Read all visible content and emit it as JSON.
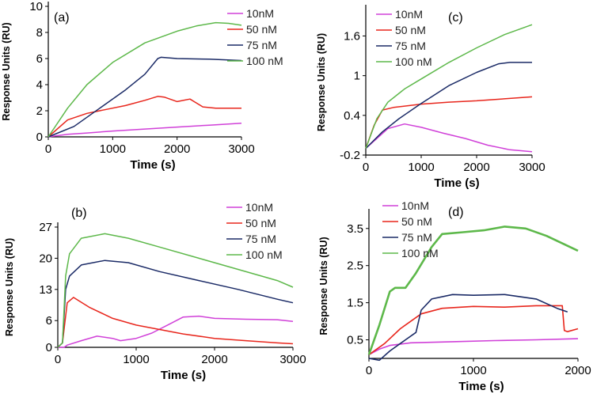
{
  "figure": {
    "colors": {
      "10nM": "#d040d8",
      "50nM": "#e8261c",
      "75nM": "#1a2a66",
      "100nM": "#5db84a"
    }
  },
  "chart_data": [
    {
      "id": "a",
      "panel_label": "(a)",
      "type": "line",
      "xlabel": "Time (s)",
      "ylabel": "Response Units (RU)",
      "xlim": [
        0,
        3000
      ],
      "ylim": [
        0,
        10
      ],
      "xticks": [
        0,
        1000,
        2000,
        3000
      ],
      "yticks": [
        0,
        2,
        4,
        6,
        8,
        10
      ],
      "series": [
        {
          "key": "10nM",
          "name": "10nM",
          "x": [
            0,
            300,
            600,
            1000,
            1500,
            2000,
            2500,
            3000
          ],
          "y": [
            0,
            0.2,
            0.3,
            0.45,
            0.6,
            0.75,
            0.9,
            1.05
          ]
        },
        {
          "key": "50nM",
          "name": "50 nM",
          "x": [
            0,
            300,
            600,
            900,
            1200,
            1500,
            1700,
            1800,
            2000,
            2200,
            2400,
            2600,
            3000
          ],
          "y": [
            0,
            1.3,
            1.8,
            2.1,
            2.4,
            2.8,
            3.1,
            3.05,
            2.7,
            2.9,
            2.3,
            2.2,
            2.2
          ]
        },
        {
          "key": "75nM",
          "name": "75 nM",
          "x": [
            0,
            400,
            800,
            1200,
            1500,
            1700,
            1750,
            2000,
            2500,
            3000
          ],
          "y": [
            0,
            0.8,
            2.2,
            3.6,
            4.8,
            6.0,
            6.1,
            6.0,
            5.95,
            5.85
          ]
        },
        {
          "key": "100nM",
          "name": "100 nM",
          "x": [
            0,
            300,
            600,
            1000,
            1500,
            2000,
            2300,
            2600,
            2800,
            3000
          ],
          "y": [
            0,
            2.2,
            4.0,
            5.7,
            7.2,
            8.1,
            8.5,
            8.75,
            8.7,
            8.55
          ]
        }
      ]
    },
    {
      "id": "b",
      "panel_label": "(b)",
      "type": "line",
      "xlabel": "Time (s)",
      "ylabel": "Response Units (RU)",
      "xlim": [
        0,
        3000
      ],
      "ylim": [
        0,
        27
      ],
      "xticks": [
        0,
        1000,
        2000,
        3000
      ],
      "yticks": [
        0,
        6,
        13,
        20,
        27
      ],
      "series": [
        {
          "key": "10nM",
          "name": "10nM",
          "x": [
            0,
            80,
            120,
            300,
            500,
            700,
            800,
            1000,
            1200,
            1400,
            1600,
            1800,
            2000,
            2400,
            2800,
            3000
          ],
          "y": [
            0,
            0,
            0.5,
            1.5,
            2.5,
            2.0,
            1.5,
            2.0,
            3.2,
            5.0,
            6.8,
            7.0,
            6.5,
            6.3,
            6.2,
            5.8
          ]
        },
        {
          "key": "50nM",
          "name": "50 nM",
          "x": [
            0,
            60,
            120,
            200,
            400,
            700,
            1000,
            1300,
            1600,
            2000,
            2400,
            2800,
            3000
          ],
          "y": [
            0,
            1,
            10.0,
            11.2,
            9.0,
            6.5,
            5.0,
            4.0,
            3.0,
            2.0,
            1.5,
            1.0,
            0.8
          ]
        },
        {
          "key": "75nM",
          "name": "75 nM",
          "x": [
            0,
            60,
            100,
            150,
            300,
            600,
            900,
            1300,
            1800,
            2300,
            2800,
            3000
          ],
          "y": [
            0,
            1,
            13.0,
            16.0,
            18.5,
            19.5,
            19.0,
            17.0,
            15.0,
            13.0,
            10.8,
            10.0
          ]
        },
        {
          "key": "100nM",
          "name": "100 nM",
          "x": [
            0,
            60,
            100,
            150,
            300,
            600,
            900,
            1300,
            1800,
            2300,
            2800,
            3000
          ],
          "y": [
            0,
            1,
            16.0,
            21.0,
            24.5,
            25.5,
            24.5,
            22.5,
            20.0,
            17.5,
            15.0,
            13.5
          ]
        }
      ]
    },
    {
      "id": "c",
      "panel_label": "(c)",
      "type": "line",
      "xlabel": "Time (s)",
      "ylabel": "Response Units (RU)",
      "xlim": [
        0,
        3000
      ],
      "ylim": [
        -0.2,
        2.0
      ],
      "xticks": [
        0,
        1000,
        2000,
        3000
      ],
      "yticks": [
        -0.2,
        0.4,
        1,
        1.6
      ],
      "series": [
        {
          "key": "10nM",
          "name": "10nM",
          "x": [
            0,
            200,
            400,
            700,
            1000,
            1400,
            1800,
            2200,
            2600,
            3000
          ],
          "y": [
            -0.1,
            0.05,
            0.2,
            0.27,
            0.22,
            0.13,
            0.05,
            -0.05,
            -0.12,
            -0.15
          ]
        },
        {
          "key": "50nM",
          "name": "50 nM",
          "x": [
            0,
            150,
            300,
            500,
            1000,
            1500,
            2000,
            2500,
            3000
          ],
          "y": [
            -0.1,
            0.25,
            0.48,
            0.52,
            0.57,
            0.6,
            0.62,
            0.65,
            0.68
          ]
        },
        {
          "key": "75nM",
          "name": "75 nM",
          "x": [
            0,
            300,
            600,
            1000,
            1500,
            2000,
            2400,
            2600,
            3000
          ],
          "y": [
            -0.1,
            0.15,
            0.35,
            0.58,
            0.85,
            1.05,
            1.18,
            1.2,
            1.2
          ]
        },
        {
          "key": "100nM",
          "name": "100 nM",
          "x": [
            0,
            200,
            400,
            700,
            1000,
            1500,
            2000,
            2500,
            3000
          ],
          "y": [
            -0.1,
            0.35,
            0.6,
            0.8,
            0.95,
            1.2,
            1.42,
            1.62,
            1.77
          ]
        }
      ]
    },
    {
      "id": "d",
      "panel_label": "(d)",
      "type": "line",
      "xlabel": "Time (s)",
      "ylabel": "Response Units (RU)",
      "xlim": [
        0,
        2000
      ],
      "ylim": [
        0,
        3.9
      ],
      "xticks": [
        0,
        1000,
        2000
      ],
      "yticks": [
        0.5,
        1.5,
        2.5,
        3.5
      ],
      "series": [
        {
          "key": "10nM",
          "name": "10nM",
          "x": [
            0,
            100,
            200,
            400,
            800,
            1200,
            1600,
            2000
          ],
          "y": [
            0.1,
            0.25,
            0.35,
            0.42,
            0.45,
            0.48,
            0.5,
            0.53
          ]
        },
        {
          "key": "50nM",
          "name": "50 nM",
          "x": [
            0,
            150,
            300,
            500,
            700,
            1000,
            1300,
            1600,
            1850,
            1870,
            1900,
            2000
          ],
          "y": [
            0.1,
            0.4,
            0.8,
            1.2,
            1.35,
            1.4,
            1.38,
            1.42,
            1.42,
            0.75,
            0.72,
            0.8
          ]
        },
        {
          "key": "75nM",
          "name": "75 nM",
          "x": [
            0,
            100,
            200,
            350,
            450,
            500,
            600,
            800,
            1000,
            1300,
            1600,
            1800,
            1900
          ],
          "y": [
            0.0,
            -0.05,
            0.2,
            0.5,
            0.7,
            1.3,
            1.6,
            1.72,
            1.7,
            1.72,
            1.6,
            1.35,
            1.25
          ]
        },
        {
          "key": "100nM",
          "name": "100 nM",
          "x": [
            0,
            100,
            200,
            250,
            350,
            450,
            600,
            700,
            900,
            1100,
            1300,
            1500,
            1700,
            2000
          ],
          "y": [
            0.1,
            0.9,
            1.8,
            1.9,
            1.9,
            2.3,
            3.0,
            3.35,
            3.4,
            3.45,
            3.55,
            3.5,
            3.3,
            2.9
          ]
        }
      ]
    }
  ]
}
